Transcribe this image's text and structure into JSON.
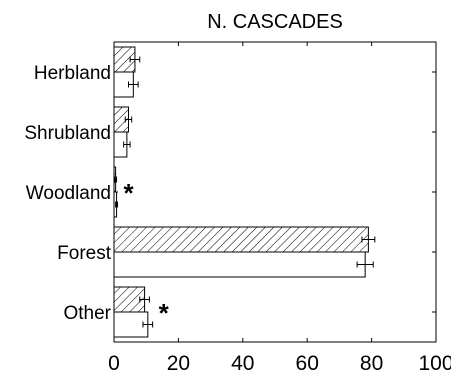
{
  "chart_data": {
    "type": "bar",
    "orientation": "horizontal",
    "title": "N. CASCADES",
    "xlabel": "",
    "ylabel": "",
    "xlim": [
      0,
      100
    ],
    "x_ticks": [
      "0",
      "20",
      "40",
      "60",
      "80",
      "100"
    ],
    "categories": [
      "Herbland",
      "Shrubland",
      "Woodland",
      "Forest",
      "Other"
    ],
    "series": [
      {
        "style": "hatched",
        "values": [
          6.5,
          4.5,
          0.5,
          79,
          9.5
        ],
        "errors": [
          1.5,
          1.0,
          0.3,
          2.0,
          1.5
        ]
      },
      {
        "style": "open",
        "values": [
          6,
          4,
          0.8,
          78,
          10.5
        ],
        "errors": [
          1.5,
          1.0,
          0.3,
          2.5,
          1.5
        ]
      }
    ],
    "annotations": [
      {
        "category": "Woodland",
        "text": "*"
      },
      {
        "category": "Other",
        "text": "*"
      }
    ],
    "grid": false,
    "legend": "none"
  }
}
